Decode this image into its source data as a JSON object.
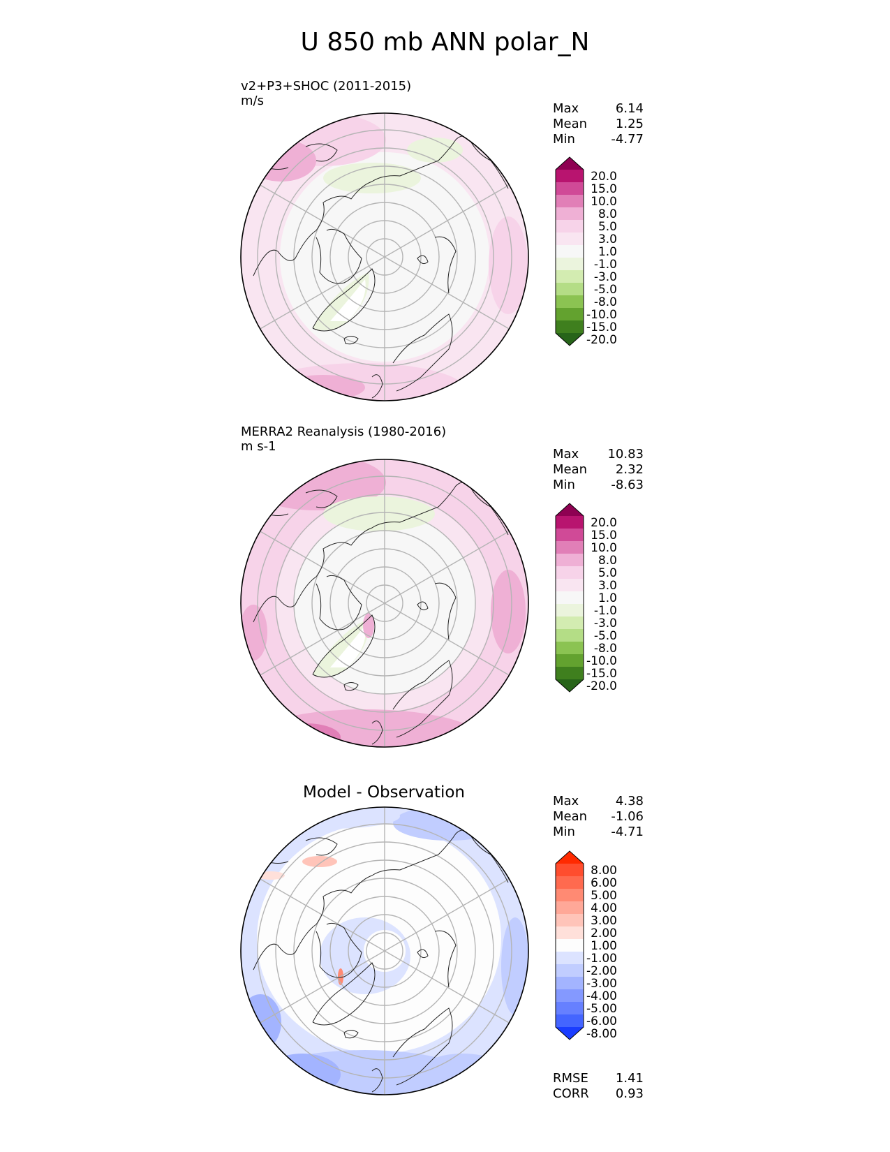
{
  "title": "U 850 mb ANN polar_N",
  "panels": [
    {
      "label_line1": "v2+P3+SHOC (2011-2015)",
      "label_line2": "m/s",
      "stats": {
        "max_label": "Max",
        "max": "6.14",
        "mean_label": "Mean",
        "mean": "1.25",
        "min_label": "Min",
        "min": "-4.77"
      }
    },
    {
      "label_line1": "MERRA2 Reanalysis (1980-2016)",
      "label_line2": "m s-1",
      "stats": {
        "max_label": "Max",
        "max": "10.83",
        "mean_label": "Mean",
        "mean": "2.32",
        "min_label": "Min",
        "min": "-8.63"
      }
    },
    {
      "title": "Model - Observation",
      "stats": {
        "max_label": "Max",
        "max": "4.38",
        "mean_label": "Mean",
        "mean": "-1.06",
        "min_label": "Min",
        "min": "-4.71"
      },
      "rmse_label": "RMSE",
      "rmse": "1.41",
      "corr_label": "CORR",
      "corr": "0.93"
    }
  ],
  "colorbar_field": {
    "ticks": [
      "20.0",
      "15.0",
      "10.0",
      "8.0",
      "5.0",
      "3.0",
      "1.0",
      "-1.0",
      "-3.0",
      "-5.0",
      "-8.0",
      "-10.0",
      "-15.0",
      "-20.0"
    ],
    "colors": [
      "#8e0152",
      "#b8146f",
      "#d04a97",
      "#e17fb7",
      "#efb0d5",
      "#f7d3e9",
      "#f9e5f1",
      "#f7f7f7",
      "#ebf4dd",
      "#d3ecb1",
      "#b4dd86",
      "#8bc352",
      "#63a22f",
      "#3f7f1e",
      "#276419"
    ]
  },
  "colorbar_diff": {
    "ticks": [
      "8.00",
      "6.00",
      "5.00",
      "4.00",
      "3.00",
      "2.00",
      "1.00",
      "-1.00",
      "-2.00",
      "-3.00",
      "-4.00",
      "-5.00",
      "-6.00",
      "-8.00"
    ],
    "colors": [
      "#ff2a00",
      "#ff4d2e",
      "#ff6a4f",
      "#ff8a73",
      "#ffa898",
      "#ffc4b9",
      "#ffe0da",
      "#fdfdfd",
      "#dce3ff",
      "#c1cdff",
      "#a3b4ff",
      "#8499ff",
      "#6680ff",
      "#4465ff",
      "#1a3dff"
    ]
  }
}
